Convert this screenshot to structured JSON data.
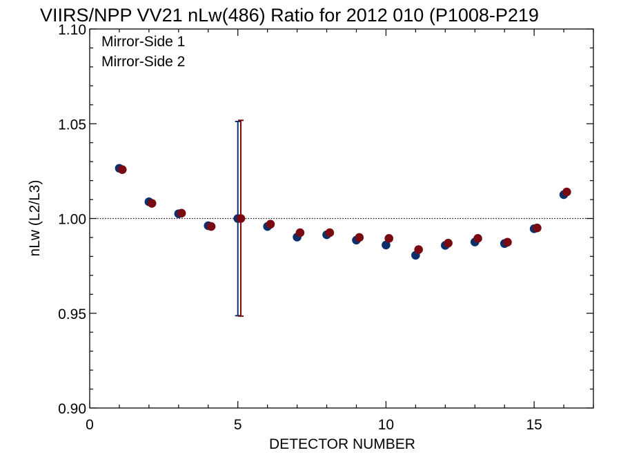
{
  "chart_data": {
    "type": "scatter",
    "title": "VIIRS/NPP VV21 nLw(486) Ratio for 2012 010 (P1008-P219",
    "xlabel": "DETECTOR NUMBER",
    "ylabel": "nLw (L2/L3)",
    "xlim": [
      0,
      17
    ],
    "ylim": [
      0.9,
      1.1
    ],
    "x_ticks": [
      0,
      5,
      10,
      15
    ],
    "x_tick_labels": [
      "0",
      "5",
      "10",
      "15"
    ],
    "y_ticks": [
      0.9,
      0.95,
      1.0,
      1.05,
      1.1
    ],
    "y_tick_labels": [
      "0.90",
      "0.95",
      "1.00",
      "1.05",
      "1.10"
    ],
    "reference_line": 1.0,
    "grid": false,
    "legend_position": "top-left",
    "series": [
      {
        "name": "Mirror-Side 1",
        "color": "#0b2f6b",
        "x": [
          1,
          2,
          3,
          4,
          5,
          6,
          7,
          8,
          9,
          10,
          11,
          12,
          13,
          14,
          15,
          16
        ],
        "y": [
          1.0265,
          1.0088,
          1.0025,
          0.9962,
          1.0,
          0.9958,
          0.9902,
          0.9914,
          0.9886,
          0.986,
          0.9806,
          0.9858,
          0.9876,
          0.9868,
          0.9946,
          1.0126
        ],
        "error_bar": {
          "x": 5,
          "low": 0.9487,
          "high": 1.0512
        }
      },
      {
        "name": "Mirror-Side 2",
        "color": "#7a0a12",
        "x": [
          1.1,
          2.1,
          3.1,
          4.1,
          5.1,
          6.1,
          7.1,
          8.1,
          9.1,
          10.1,
          11.1,
          12.1,
          13.1,
          14.1,
          15.1,
          16.1
        ],
        "y": [
          1.0258,
          1.008,
          1.0028,
          0.9958,
          1.0,
          0.997,
          0.9925,
          0.9925,
          0.99,
          0.9895,
          0.9836,
          0.987,
          0.9895,
          0.9875,
          0.995,
          1.014
        ],
        "error_bar": {
          "x": 5.1,
          "low": 0.9485,
          "high": 1.0518
        }
      }
    ]
  }
}
